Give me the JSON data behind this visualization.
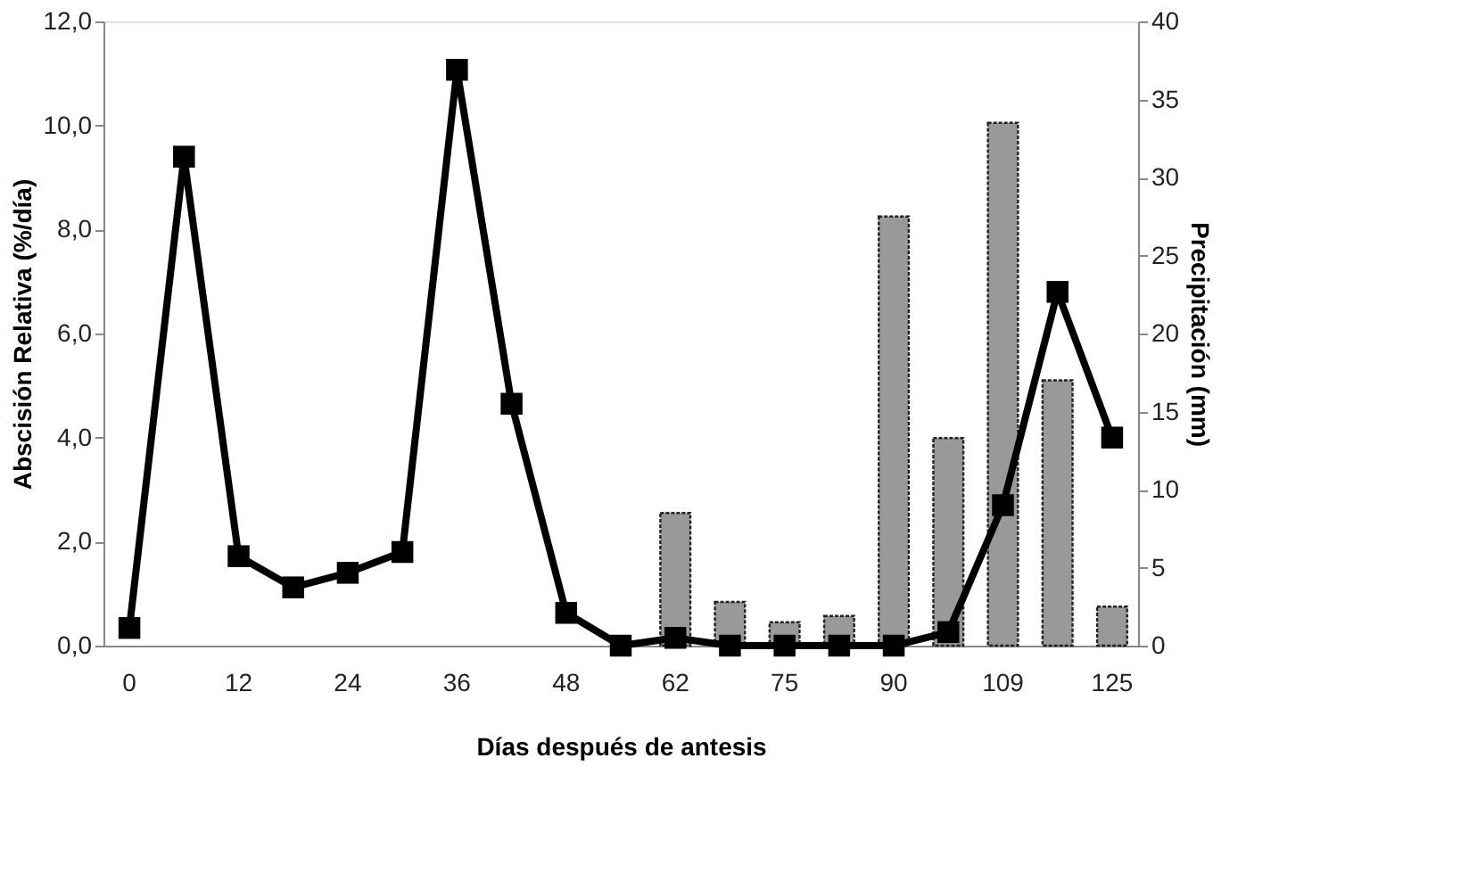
{
  "chart_data": {
    "type": "line",
    "xlabel": "Días después de antesis",
    "ylabel": "Abscisión Relativa (%/día)",
    "y2label": "Precipitación (mm)",
    "categories": [
      "0",
      null,
      "12",
      null,
      "24",
      null,
      "36",
      null,
      "48",
      null,
      "62",
      null,
      "75",
      null,
      "90",
      null,
      "109",
      null,
      "125"
    ],
    "series": [
      {
        "type": "bar",
        "axis": "y2",
        "color": "#999999",
        "values": [
          null,
          null,
          null,
          null,
          null,
          null,
          null,
          null,
          null,
          null,
          8.5,
          2.8,
          1.5,
          1.9,
          27.5,
          13.3,
          33.5,
          17.0,
          2.5
        ]
      },
      {
        "color": "#000000",
        "values": [
          0.34,
          9.4,
          1.72,
          1.12,
          1.4,
          1.8,
          11.07,
          4.65,
          0.63,
          0.0,
          0.15,
          0.0,
          0.0,
          0.0,
          0.0,
          0.26,
          2.7,
          6.8,
          4.0
        ]
      }
    ],
    "ylim": [
      0,
      12
    ],
    "yticks": [
      {
        "value": 0,
        "label": "0,0"
      },
      {
        "value": 2,
        "label": "2,0"
      },
      {
        "value": 4,
        "label": "4,0"
      },
      {
        "value": 6,
        "label": "6,0"
      },
      {
        "value": 8,
        "label": "8,0"
      },
      {
        "value": 10,
        "label": "10,0"
      },
      {
        "value": 12,
        "label": "12,0"
      }
    ],
    "y2lim": [
      0,
      40
    ],
    "y2ticks": [
      0,
      5,
      10,
      15,
      20,
      25,
      30,
      35,
      40
    ],
    "grid": false,
    "marker": "square",
    "line_style": "solid"
  }
}
